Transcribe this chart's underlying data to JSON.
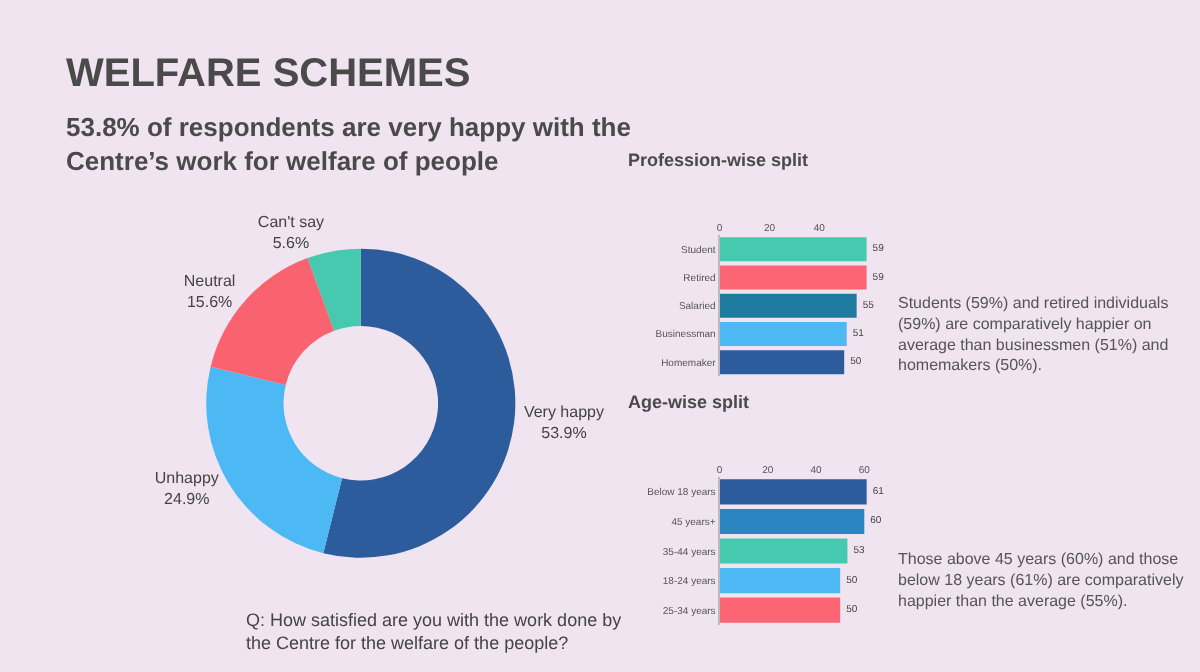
{
  "chart_data": [
    {
      "type": "donut",
      "title": "WELFARE SCHEMES",
      "subtitle": "53.8% of respondents are very happy with the Centre’s work for welfare of people",
      "categories": [
        "Very happy",
        "Unhappy",
        "Neutral",
        "Can't say"
      ],
      "values": [
        53.9,
        24.9,
        15.6,
        5.6
      ],
      "colors": [
        "#2d5c9c",
        "#4cb9f5",
        "#f9636f",
        "#47c9b0"
      ],
      "value_labels": [
        "53.9%",
        "24.9%",
        "15.6%",
        "5.6%"
      ],
      "annotations": [
        "Q: How satisfied are you with the work done by the Centre for the welfare of the people?"
      ]
    },
    {
      "type": "bar",
      "orientation": "horizontal",
      "title": "Profession-wise split",
      "categories": [
        "Student",
        "Retired",
        "Salaried",
        "Businessman",
        "Homemaker"
      ],
      "values": [
        59,
        59,
        55,
        51,
        50
      ],
      "colors": [
        "#47c9b0",
        "#fb6574",
        "#1f7aa0",
        "#4cb9f5",
        "#2d5c9c"
      ],
      "xlim": [
        0,
        60
      ],
      "xticks": [
        0,
        20,
        40
      ],
      "data_labels": true,
      "annotations": [
        "Students (59%) and retired individuals (59%) are comparatively happier on average than businessmen (51%) and homemakers (50%)."
      ]
    },
    {
      "type": "bar",
      "orientation": "horizontal",
      "title": "Age-wise split",
      "categories": [
        "Below 18 years",
        "45 years+",
        "35-44 years",
        "18-24 years",
        "25-34 years"
      ],
      "values": [
        61,
        60,
        53,
        50,
        50
      ],
      "colors": [
        "#2d5c9c",
        "#2a85c0",
        "#47c9b0",
        "#4cb9f5",
        "#fb6574"
      ],
      "xlim": [
        0,
        62
      ],
      "xticks": [
        0,
        20,
        40,
        60
      ],
      "data_labels": true,
      "annotations": [
        "Those above 45 years (60%) and those below 18 years (61%) are comparatively happier than the average (55%)."
      ]
    }
  ]
}
